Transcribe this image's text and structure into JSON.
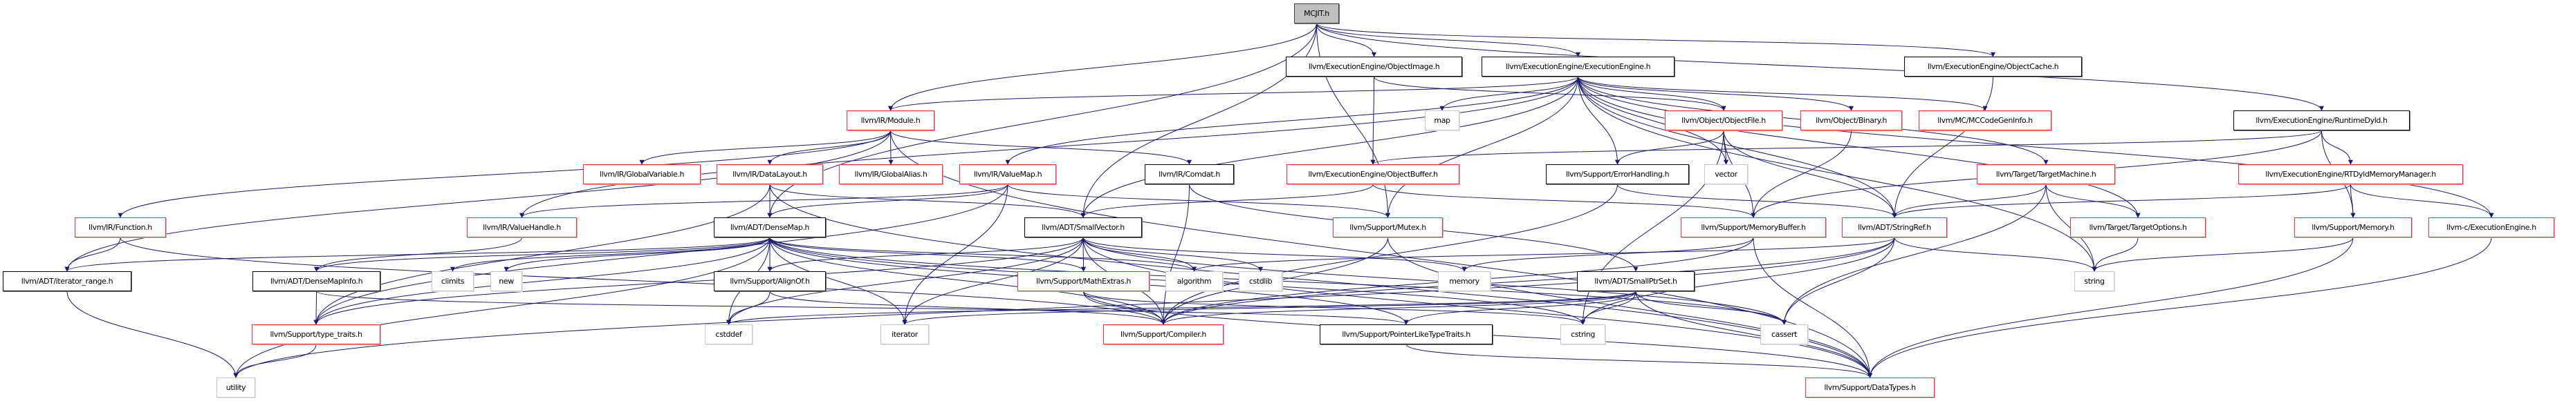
{
  "colors": {
    "edge": "#191970",
    "truncated_border": "#ff3030",
    "normal_border": "#000000",
    "system_border": "#c8c8c8",
    "root_fill": "#bfbfbf"
  },
  "nodes": [
    {
      "id": "n0",
      "label": "MCJIT.h",
      "kind": "root"
    },
    {
      "id": "n1",
      "label": "llvm/ExecutionEngine/ObjectImage.h",
      "kind": "normal"
    },
    {
      "id": "n2",
      "label": "llvm/ExecutionEngine/ExecutionEngine.h",
      "kind": "normal"
    },
    {
      "id": "n3",
      "label": "llvm/ExecutionEngine/ObjectCache.h",
      "kind": "normal"
    },
    {
      "id": "n4",
      "label": "llvm/IR/Module.h",
      "kind": "truncated"
    },
    {
      "id": "n5",
      "label": "map",
      "kind": "system"
    },
    {
      "id": "n6",
      "label": "llvm/Object/ObjectFile.h",
      "kind": "truncated"
    },
    {
      "id": "n7",
      "label": "llvm/Object/Binary.h",
      "kind": "truncated"
    },
    {
      "id": "n8",
      "label": "llvm/MC/MCCodeGenInfo.h",
      "kind": "truncated"
    },
    {
      "id": "n9",
      "label": "llvm/ExecutionEngine/RuntimeDyld.h",
      "kind": "normal"
    },
    {
      "id": "n10",
      "label": "llvm/IR/GlobalVariable.h",
      "kind": "truncated"
    },
    {
      "id": "n11",
      "label": "llvm/IR/DataLayout.h",
      "kind": "truncated"
    },
    {
      "id": "n12",
      "label": "llvm/IR/GlobalAlias.h",
      "kind": "truncated"
    },
    {
      "id": "n13",
      "label": "llvm/IR/ValueMap.h",
      "kind": "truncated"
    },
    {
      "id": "n14",
      "label": "llvm/IR/Comdat.h",
      "kind": "normal"
    },
    {
      "id": "n15",
      "label": "llvm/ExecutionEngine/ObjectBuffer.h",
      "kind": "truncated"
    },
    {
      "id": "n16",
      "label": "llvm/Support/ErrorHandling.h",
      "kind": "normal"
    },
    {
      "id": "n17",
      "label": "vector",
      "kind": "system"
    },
    {
      "id": "n18",
      "label": "llvm/Target/TargetMachine.h",
      "kind": "truncated"
    },
    {
      "id": "n19",
      "label": "llvm/ExecutionEngine/RTDyldMemoryManager.h",
      "kind": "truncated"
    },
    {
      "id": "n20",
      "label": "llvm/IR/Function.h",
      "kind": "truncated"
    },
    {
      "id": "n21",
      "label": "llvm/IR/ValueHandle.h",
      "kind": "truncated"
    },
    {
      "id": "n22",
      "label": "llvm/ADT/DenseMap.h",
      "kind": "normal"
    },
    {
      "id": "n23",
      "label": "llvm/ADT/SmallVector.h",
      "kind": "normal"
    },
    {
      "id": "n24",
      "label": "llvm/Support/Mutex.h",
      "kind": "truncated"
    },
    {
      "id": "n25",
      "label": "llvm/Support/MemoryBuffer.h",
      "kind": "truncated"
    },
    {
      "id": "n26",
      "label": "llvm/ADT/StringRef.h",
      "kind": "truncated"
    },
    {
      "id": "n27",
      "label": "llvm/Target/TargetOptions.h",
      "kind": "truncated"
    },
    {
      "id": "n28",
      "label": "llvm/Support/Memory.h",
      "kind": "truncated"
    },
    {
      "id": "n29",
      "label": "llvm-c/ExecutionEngine.h",
      "kind": "truncated"
    },
    {
      "id": "n30",
      "label": "llvm/ADT/iterator_range.h",
      "kind": "normal"
    },
    {
      "id": "n31",
      "label": "llvm/ADT/DenseMapInfo.h",
      "kind": "normal"
    },
    {
      "id": "n32",
      "label": "climits",
      "kind": "system"
    },
    {
      "id": "n33",
      "label": "new",
      "kind": "system"
    },
    {
      "id": "n34",
      "label": "llvm/Support/AlignOf.h",
      "kind": "normal"
    },
    {
      "id": "n35",
      "label": "llvm/Support/MathExtras.h",
      "kind": "truncated"
    },
    {
      "id": "n36",
      "label": "algorithm",
      "kind": "system"
    },
    {
      "id": "n37",
      "label": "cstdlib",
      "kind": "system"
    },
    {
      "id": "n38",
      "label": "memory",
      "kind": "system"
    },
    {
      "id": "n39",
      "label": "llvm/ADT/SmallPtrSet.h",
      "kind": "normal"
    },
    {
      "id": "n40",
      "label": "string",
      "kind": "system"
    },
    {
      "id": "n41",
      "label": "llvm/Support/type_traits.h",
      "kind": "truncated"
    },
    {
      "id": "n42",
      "label": "cstddef",
      "kind": "system"
    },
    {
      "id": "n43",
      "label": "iterator",
      "kind": "system"
    },
    {
      "id": "n44",
      "label": "llvm/Support/Compiler.h",
      "kind": "truncated"
    },
    {
      "id": "n45",
      "label": "llvm/Support/PointerLikeTypeTraits.h",
      "kind": "normal"
    },
    {
      "id": "n46",
      "label": "cstring",
      "kind": "system"
    },
    {
      "id": "n47",
      "label": "cassert",
      "kind": "system"
    },
    {
      "id": "n48",
      "label": "utility",
      "kind": "system"
    },
    {
      "id": "n49",
      "label": "llvm/Support/DataTypes.h",
      "kind": "truncated"
    }
  ],
  "edges": [
    [
      "n0",
      "n1"
    ],
    [
      "n0",
      "n2"
    ],
    [
      "n0",
      "n3"
    ],
    [
      "n0",
      "n4"
    ],
    [
      "n0",
      "n9"
    ],
    [
      "n0",
      "n22"
    ],
    [
      "n0",
      "n23"
    ],
    [
      "n0",
      "n24"
    ],
    [
      "n1",
      "n15"
    ],
    [
      "n1",
      "n6"
    ],
    [
      "n2",
      "n4"
    ],
    [
      "n2",
      "n5"
    ],
    [
      "n2",
      "n13"
    ],
    [
      "n2",
      "n23"
    ],
    [
      "n2",
      "n24"
    ],
    [
      "n2",
      "n16"
    ],
    [
      "n2",
      "n17"
    ],
    [
      "n2",
      "n6"
    ],
    [
      "n2",
      "n7"
    ],
    [
      "n2",
      "n8"
    ],
    [
      "n2",
      "n18"
    ],
    [
      "n2",
      "n27"
    ],
    [
      "n2",
      "n26"
    ],
    [
      "n2",
      "n40"
    ],
    [
      "n2",
      "n29"
    ],
    [
      "n2",
      "n21"
    ],
    [
      "n3",
      "n26"
    ],
    [
      "n4",
      "n10"
    ],
    [
      "n4",
      "n11"
    ],
    [
      "n4",
      "n12"
    ],
    [
      "n4",
      "n20"
    ],
    [
      "n4",
      "n14"
    ],
    [
      "n4",
      "n30"
    ],
    [
      "n4",
      "n49"
    ],
    [
      "n6",
      "n17"
    ],
    [
      "n6",
      "n16"
    ],
    [
      "n6",
      "n25"
    ],
    [
      "n6",
      "n26"
    ],
    [
      "n6",
      "n46"
    ],
    [
      "n7",
      "n25"
    ],
    [
      "n9",
      "n15"
    ],
    [
      "n9",
      "n19"
    ],
    [
      "n9",
      "n28"
    ],
    [
      "n9",
      "n25"
    ],
    [
      "n11",
      "n22"
    ],
    [
      "n11",
      "n23"
    ],
    [
      "n11",
      "n41"
    ],
    [
      "n11",
      "n49"
    ],
    [
      "n13",
      "n22"
    ],
    [
      "n13",
      "n21"
    ],
    [
      "n13",
      "n24"
    ],
    [
      "n13",
      "n43"
    ],
    [
      "n13",
      "n41"
    ],
    [
      "n14",
      "n44"
    ],
    [
      "n14",
      "n39"
    ],
    [
      "n15",
      "n23"
    ],
    [
      "n15",
      "n25"
    ],
    [
      "n16",
      "n44"
    ],
    [
      "n16",
      "n26"
    ],
    [
      "n18",
      "n26"
    ],
    [
      "n18",
      "n27"
    ],
    [
      "n18",
      "n40"
    ],
    [
      "n18",
      "n47"
    ],
    [
      "n19",
      "n26"
    ],
    [
      "n19",
      "n28"
    ],
    [
      "n19",
      "n29"
    ],
    [
      "n20",
      "n30"
    ],
    [
      "n20",
      "n44"
    ],
    [
      "n21",
      "n31"
    ],
    [
      "n22",
      "n30"
    ],
    [
      "n22",
      "n31"
    ],
    [
      "n22",
      "n32"
    ],
    [
      "n22",
      "n33"
    ],
    [
      "n22",
      "n34"
    ],
    [
      "n22",
      "n41"
    ],
    [
      "n22",
      "n42"
    ],
    [
      "n22",
      "n48"
    ],
    [
      "n22",
      "n35"
    ],
    [
      "n22",
      "n36"
    ],
    [
      "n22",
      "n43"
    ],
    [
      "n22",
      "n44"
    ],
    [
      "n22",
      "n45"
    ],
    [
      "n22",
      "n46"
    ],
    [
      "n22",
      "n47"
    ],
    [
      "n23",
      "n35"
    ],
    [
      "n23",
      "n36"
    ],
    [
      "n23",
      "n37"
    ],
    [
      "n23",
      "n38"
    ],
    [
      "n23",
      "n43"
    ],
    [
      "n23",
      "n44"
    ],
    [
      "n23",
      "n47"
    ],
    [
      "n23",
      "n42"
    ],
    [
      "n23",
      "n41"
    ],
    [
      "n23",
      "n34"
    ],
    [
      "n23",
      "n49"
    ],
    [
      "n24",
      "n44"
    ],
    [
      "n24",
      "n49"
    ],
    [
      "n25",
      "n44"
    ],
    [
      "n25",
      "n49"
    ],
    [
      "n25",
      "n38"
    ],
    [
      "n26",
      "n47"
    ],
    [
      "n26",
      "n46"
    ],
    [
      "n26",
      "n40"
    ],
    [
      "n26",
      "n48"
    ],
    [
      "n26",
      "n44"
    ],
    [
      "n26",
      "n36"
    ],
    [
      "n27",
      "n40"
    ],
    [
      "n28",
      "n40"
    ],
    [
      "n28",
      "n49"
    ],
    [
      "n29",
      "n49"
    ],
    [
      "n30",
      "n48"
    ],
    [
      "n31",
      "n41"
    ],
    [
      "n31",
      "n45"
    ],
    [
      "n34",
      "n42"
    ],
    [
      "n34",
      "n44"
    ],
    [
      "n35",
      "n44"
    ],
    [
      "n35",
      "n49"
    ],
    [
      "n35",
      "n46"
    ],
    [
      "n39",
      "n44"
    ],
    [
      "n39",
      "n45"
    ],
    [
      "n39",
      "n46"
    ],
    [
      "n39",
      "n47"
    ],
    [
      "n39",
      "n43"
    ],
    [
      "n39",
      "n42"
    ],
    [
      "n39",
      "n49"
    ],
    [
      "n41",
      "n48"
    ],
    [
      "n45",
      "n49"
    ]
  ]
}
